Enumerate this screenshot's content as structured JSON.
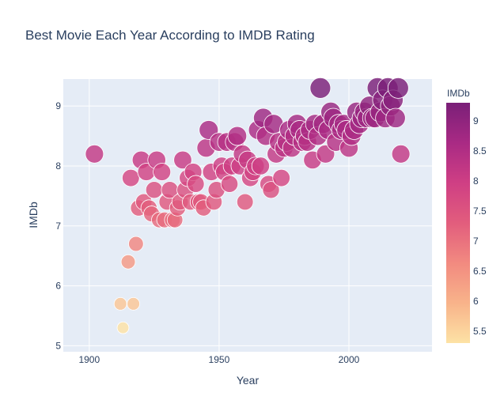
{
  "chart_data": {
    "type": "scatter",
    "title": "Best Movie Each Year According to IMDB Rating",
    "xlabel": "Year",
    "ylabel": "IMDb",
    "xlim": [
      1890,
      2032
    ],
    "ylim": [
      4.9,
      9.45
    ],
    "x_ticks": [
      1900,
      1950,
      2000
    ],
    "y_ticks": [
      5,
      6,
      7,
      8,
      9
    ],
    "grid": true,
    "colorscale": [
      "#fde2a5",
      "#f8b38a",
      "#f28a80",
      "#e25d7d",
      "#cf3f84",
      "#a92a84",
      "#7a1f78"
    ],
    "colorbar": {
      "title": "IMDb",
      "range": [
        5.3,
        9.3
      ],
      "ticks": [
        5.5,
        6,
        6.5,
        7,
        7.5,
        8,
        8.5,
        9
      ]
    },
    "colorbar_tick_labels": [
      "5.5",
      "6",
      "6.5",
      "7",
      "7.5",
      "8",
      "8.5",
      "9"
    ],
    "points": [
      {
        "x": 1902,
        "y": 8.2
      },
      {
        "x": 1912,
        "y": 5.7
      },
      {
        "x": 1913,
        "y": 5.3
      },
      {
        "x": 1915,
        "y": 6.4
      },
      {
        "x": 1916,
        "y": 7.8
      },
      {
        "x": 1917,
        "y": 5.7
      },
      {
        "x": 1918,
        "y": 6.7
      },
      {
        "x": 1919,
        "y": 7.3
      },
      {
        "x": 1920,
        "y": 8.1
      },
      {
        "x": 1921,
        "y": 7.4
      },
      {
        "x": 1922,
        "y": 7.9
      },
      {
        "x": 1923,
        "y": 7.3
      },
      {
        "x": 1924,
        "y": 7.2
      },
      {
        "x": 1925,
        "y": 7.6
      },
      {
        "x": 1926,
        "y": 8.1
      },
      {
        "x": 1927,
        "y": 7.1
      },
      {
        "x": 1928,
        "y": 7.9
      },
      {
        "x": 1929,
        "y": 7.1
      },
      {
        "x": 1930,
        "y": 7.4
      },
      {
        "x": 1931,
        "y": 7.6
      },
      {
        "x": 1932,
        "y": 7.1
      },
      {
        "x": 1933,
        "y": 7.1
      },
      {
        "x": 1934,
        "y": 7.3
      },
      {
        "x": 1935,
        "y": 7.4
      },
      {
        "x": 1936,
        "y": 8.1
      },
      {
        "x": 1937,
        "y": 7.6
      },
      {
        "x": 1938,
        "y": 7.8
      },
      {
        "x": 1939,
        "y": 7.4
      },
      {
        "x": 1940,
        "y": 7.9
      },
      {
        "x": 1941,
        "y": 7.7
      },
      {
        "x": 1942,
        "y": 7.4
      },
      {
        "x": 1943,
        "y": 7.4
      },
      {
        "x": 1944,
        "y": 7.3
      },
      {
        "x": 1945,
        "y": 8.3
      },
      {
        "x": 1946,
        "y": 8.6
      },
      {
        "x": 1947,
        "y": 7.9
      },
      {
        "x": 1948,
        "y": 7.4
      },
      {
        "x": 1949,
        "y": 7.6
      },
      {
        "x": 1950,
        "y": 8.4
      },
      {
        "x": 1951,
        "y": 8.0
      },
      {
        "x": 1952,
        "y": 7.9
      },
      {
        "x": 1953,
        "y": 8.4
      },
      {
        "x": 1954,
        "y": 7.7
      },
      {
        "x": 1955,
        "y": 8.0
      },
      {
        "x": 1956,
        "y": 8.4
      },
      {
        "x": 1957,
        "y": 8.5
      },
      {
        "x": 1958,
        "y": 8.0
      },
      {
        "x": 1959,
        "y": 8.2
      },
      {
        "x": 1960,
        "y": 7.4
      },
      {
        "x": 1961,
        "y": 8.1
      },
      {
        "x": 1962,
        "y": 7.8
      },
      {
        "x": 1963,
        "y": 7.9
      },
      {
        "x": 1964,
        "y": 8.0
      },
      {
        "x": 1965,
        "y": 8.6
      },
      {
        "x": 1966,
        "y": 8.0
      },
      {
        "x": 1967,
        "y": 8.8
      },
      {
        "x": 1968,
        "y": 8.5
      },
      {
        "x": 1969,
        "y": 7.7
      },
      {
        "x": 1970,
        "y": 7.6
      },
      {
        "x": 1971,
        "y": 8.7
      },
      {
        "x": 1972,
        "y": 8.2
      },
      {
        "x": 1973,
        "y": 8.4
      },
      {
        "x": 1974,
        "y": 7.8
      },
      {
        "x": 1975,
        "y": 8.3
      },
      {
        "x": 1976,
        "y": 8.4
      },
      {
        "x": 1977,
        "y": 8.6
      },
      {
        "x": 1978,
        "y": 8.3
      },
      {
        "x": 1979,
        "y": 8.5
      },
      {
        "x": 1980,
        "y": 8.7
      },
      {
        "x": 1981,
        "y": 8.6
      },
      {
        "x": 1982,
        "y": 8.4
      },
      {
        "x": 1983,
        "y": 8.5
      },
      {
        "x": 1984,
        "y": 8.4
      },
      {
        "x": 1985,
        "y": 8.6
      },
      {
        "x": 1986,
        "y": 8.1
      },
      {
        "x": 1987,
        "y": 8.7
      },
      {
        "x": 1988,
        "y": 8.5
      },
      {
        "x": 1989,
        "y": 9.3
      },
      {
        "x": 1990,
        "y": 8.7
      },
      {
        "x": 1991,
        "y": 8.2
      },
      {
        "x": 1992,
        "y": 8.6
      },
      {
        "x": 1993,
        "y": 8.9
      },
      {
        "x": 1994,
        "y": 8.8
      },
      {
        "x": 1995,
        "y": 8.4
      },
      {
        "x": 1996,
        "y": 8.7
      },
      {
        "x": 1997,
        "y": 8.6
      },
      {
        "x": 1998,
        "y": 8.7
      },
      {
        "x": 1999,
        "y": 8.6
      },
      {
        "x": 2000,
        "y": 8.3
      },
      {
        "x": 2001,
        "y": 8.5
      },
      {
        "x": 2002,
        "y": 8.6
      },
      {
        "x": 2003,
        "y": 8.9
      },
      {
        "x": 2004,
        "y": 8.7
      },
      {
        "x": 2005,
        "y": 8.8
      },
      {
        "x": 2006,
        "y": 8.9
      },
      {
        "x": 2007,
        "y": 8.8
      },
      {
        "x": 2008,
        "y": 9.0
      },
      {
        "x": 2009,
        "y": 8.8
      },
      {
        "x": 2010,
        "y": 8.8
      },
      {
        "x": 2011,
        "y": 9.3
      },
      {
        "x": 2012,
        "y": 8.9
      },
      {
        "x": 2013,
        "y": 9.1
      },
      {
        "x": 2014,
        "y": 8.8
      },
      {
        "x": 2015,
        "y": 9.3
      },
      {
        "x": 2016,
        "y": 9.0
      },
      {
        "x": 2017,
        "y": 9.1
      },
      {
        "x": 2018,
        "y": 8.8
      },
      {
        "x": 2019,
        "y": 9.3
      },
      {
        "x": 2020,
        "y": 8.2
      }
    ]
  }
}
